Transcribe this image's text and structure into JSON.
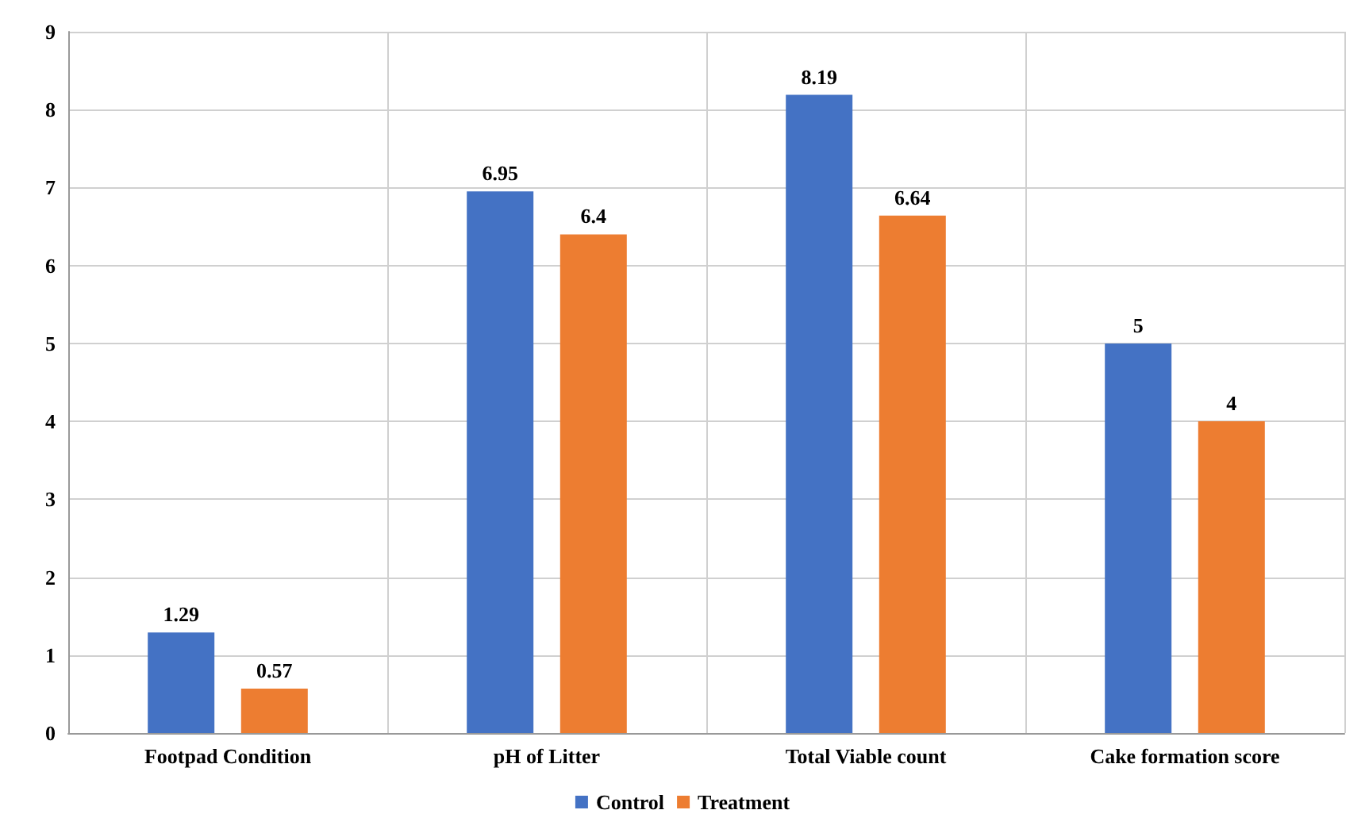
{
  "chart_data": {
    "type": "bar",
    "categories": [
      "Footpad Condition",
      "pH of Litter",
      "Total Viable count",
      "Cake formation score"
    ],
    "series": [
      {
        "name": "Control",
        "color": "#4472c4",
        "values": [
          1.29,
          6.95,
          8.19,
          5
        ]
      },
      {
        "name": "Treatment",
        "color": "#ed7d31",
        "values": [
          0.57,
          6.4,
          6.64,
          4
        ]
      }
    ],
    "ylim": [
      0,
      9
    ],
    "yticks": [
      0,
      1,
      2,
      3,
      4,
      5,
      6,
      7,
      8,
      9
    ],
    "grid": true,
    "legend": "bottom",
    "data_labels": true
  }
}
